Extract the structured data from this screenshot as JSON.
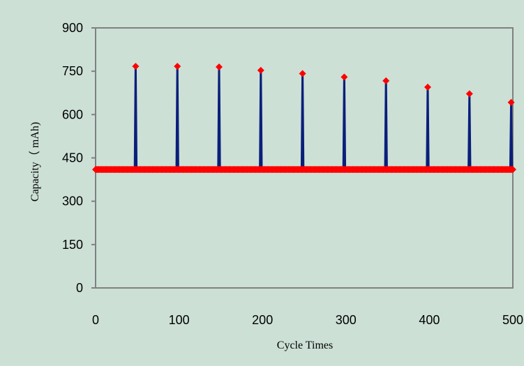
{
  "chart_data": {
    "type": "line",
    "title": "",
    "xlabel": "Cycle Times",
    "ylabel": "Capacity（ mAh)",
    "xlim": [
      0,
      500
    ],
    "ylim": [
      0,
      900
    ],
    "x_ticks": [
      0,
      100,
      200,
      300,
      400,
      500
    ],
    "y_ticks": [
      0,
      150,
      300,
      450,
      600,
      750,
      900
    ],
    "grid": "horizontal dashed",
    "legend": "none",
    "colors": {
      "background": "#cce0d6",
      "plot_area": "#cce0d6",
      "line": "#0a1f7a",
      "marker": "#ff0000",
      "grid": "#000000"
    },
    "baseline": 410,
    "series": [
      {
        "points": [
          [
            0,
            410
          ],
          [
            47,
            410
          ],
          [
            48,
            767
          ],
          [
            49,
            410
          ],
          [
            97,
            410
          ],
          [
            98,
            767
          ],
          [
            99,
            410
          ],
          [
            147,
            410
          ],
          [
            148,
            765
          ],
          [
            149,
            410
          ],
          [
            197,
            410
          ],
          [
            198,
            753
          ],
          [
            199,
            410
          ],
          [
            247,
            410
          ],
          [
            248,
            742
          ],
          [
            249,
            410
          ],
          [
            297,
            410
          ],
          [
            298,
            730
          ],
          [
            299,
            410
          ],
          [
            347,
            410
          ],
          [
            348,
            717
          ],
          [
            349,
            410
          ],
          [
            397,
            410
          ],
          [
            398,
            695
          ],
          [
            399,
            410
          ],
          [
            447,
            410
          ],
          [
            448,
            672
          ],
          [
            449,
            410
          ],
          [
            497,
            410
          ],
          [
            498,
            642
          ],
          [
            499,
            410
          ]
        ]
      }
    ]
  }
}
